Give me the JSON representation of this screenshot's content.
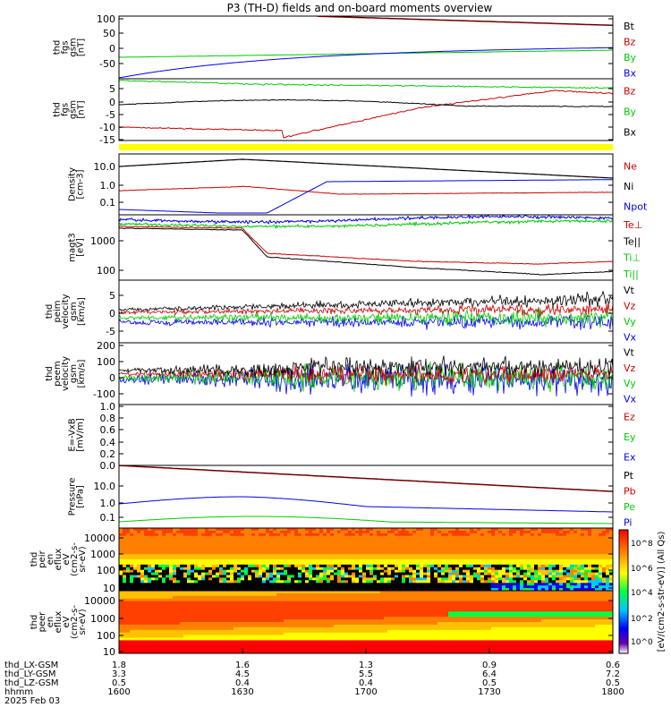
{
  "title": "P3 (TH-D) fields and on-board moments overview",
  "colorbar": {
    "label": "[eV/(cm2-s-str-eV)] (All Qs)",
    "ticks": [
      "10^8",
      "10^6",
      "10^4",
      "10^2",
      "10^0"
    ]
  },
  "chart_data": [
    {
      "type": "line",
      "ylabel": [
        "thd",
        "fgs",
        "gsm",
        "[nT]"
      ],
      "yticks": [
        100,
        50,
        0,
        -50
      ],
      "legend": [
        {
          "name": "Bt",
          "color": "#000000"
        },
        {
          "name": "Bz",
          "color": "#cc0000"
        },
        {
          "name": "By",
          "color": "#00cc00"
        },
        {
          "name": "Bx",
          "color": "#0000ee"
        }
      ]
    },
    {
      "type": "line",
      "ylabel": [
        "thd",
        "fgs",
        "gsm",
        "[nT]"
      ],
      "yticks": [
        5,
        0,
        -5,
        -10,
        -15
      ],
      "legend": [
        {
          "name": "Bz",
          "color": "#cc0000"
        },
        {
          "name": "By",
          "color": "#00cc00"
        },
        {
          "name": "Bx",
          "color": "#000000"
        }
      ]
    },
    {
      "type": "line",
      "ylabel": [
        "Density",
        "[cm-3]"
      ],
      "yticks": [
        "10.0",
        "1.0",
        "0.1"
      ],
      "legend": [
        {
          "name": "Ne",
          "color": "#cc0000"
        },
        {
          "name": "Ni",
          "color": "#000000"
        },
        {
          "name": "Npot",
          "color": "#0000ee"
        }
      ]
    },
    {
      "type": "line",
      "ylabel": [
        "magt3",
        "[eV]"
      ],
      "yticks": [
        "1000",
        "100"
      ],
      "legend": [
        {
          "name": "Te⊥",
          "color": "#cc0000"
        },
        {
          "name": "Te||",
          "color": "#000000"
        },
        {
          "name": "Ti⊥",
          "color": "#00cc00"
        },
        {
          "name": "Ti||",
          "color": "#00cc00"
        }
      ]
    },
    {
      "type": "line",
      "ylabel": [
        "thd",
        "peim",
        "velocity",
        "gsm",
        "[km/s]"
      ],
      "yticks": [
        5,
        0,
        -5
      ],
      "legend": [
        {
          "name": "Vt",
          "color": "#000000"
        },
        {
          "name": "Vz",
          "color": "#cc0000"
        },
        {
          "name": "Vy",
          "color": "#00cc00"
        },
        {
          "name": "Vx",
          "color": "#0000ee"
        }
      ]
    },
    {
      "type": "line",
      "ylabel": [
        "thd",
        "peem",
        "velocity",
        "gsm",
        "[km/s]"
      ],
      "yticks": [
        200,
        100,
        0,
        -100
      ],
      "legend": [
        {
          "name": "Vt",
          "color": "#000000"
        },
        {
          "name": "Vz",
          "color": "#cc0000"
        },
        {
          "name": "Vy",
          "color": "#00cc00"
        },
        {
          "name": "Vx",
          "color": "#0000ee"
        }
      ]
    },
    {
      "type": "line",
      "ylabel": [
        "E=-VxB",
        "[mV/m]"
      ],
      "yticks": [
        "1.0",
        "0.8",
        "0.6",
        "0.4",
        "0.2",
        "0.0"
      ],
      "legend": [
        {
          "name": "Ez",
          "color": "#cc0000"
        },
        {
          "name": "Ey",
          "color": "#00cc00"
        },
        {
          "name": "Ex",
          "color": "#0000ee"
        }
      ]
    },
    {
      "type": "line",
      "ylabel": [
        "Pressure",
        "[nPa]"
      ],
      "yticks": [
        "10.0",
        "1.0",
        "0.1"
      ],
      "legend": [
        {
          "name": "Pt",
          "color": "#000000"
        },
        {
          "name": "Pb",
          "color": "#cc0000"
        },
        {
          "name": "Pe",
          "color": "#00cc00"
        },
        {
          "name": "Pi",
          "color": "#0000ee"
        }
      ]
    },
    {
      "type": "heatmap",
      "ylabel": [
        "thd",
        "peir",
        "en",
        "eflux",
        "eV",
        "(cm2-s-",
        "sr-eV)"
      ],
      "yticks": [
        "10000",
        "1000",
        "100",
        "10"
      ]
    },
    {
      "type": "heatmap",
      "ylabel": [
        "thd",
        "peer",
        "en",
        "eflux",
        "eV",
        "(cm2-s-",
        "sr-eV)"
      ],
      "yticks": [
        "10000",
        "1000",
        "100",
        "10"
      ]
    }
  ],
  "x_axis": {
    "rows": [
      {
        "label": "thd_LX-GSM",
        "values": [
          "1.8",
          "1.6",
          "1.3",
          "0.9",
          "0.6"
        ]
      },
      {
        "label": "thd_LY-GSM",
        "values": [
          "3.3",
          "4.5",
          "5.5",
          "6.4",
          "7.2"
        ]
      },
      {
        "label": "thd_LZ-GSM",
        "values": [
          "0.5",
          "0.4",
          "0.4",
          "0.5",
          "0.5"
        ]
      },
      {
        "label": "hhmm",
        "values": [
          "1600",
          "1630",
          "1700",
          "1730",
          "1800"
        ]
      }
    ],
    "date": "2025 Feb 03"
  }
}
